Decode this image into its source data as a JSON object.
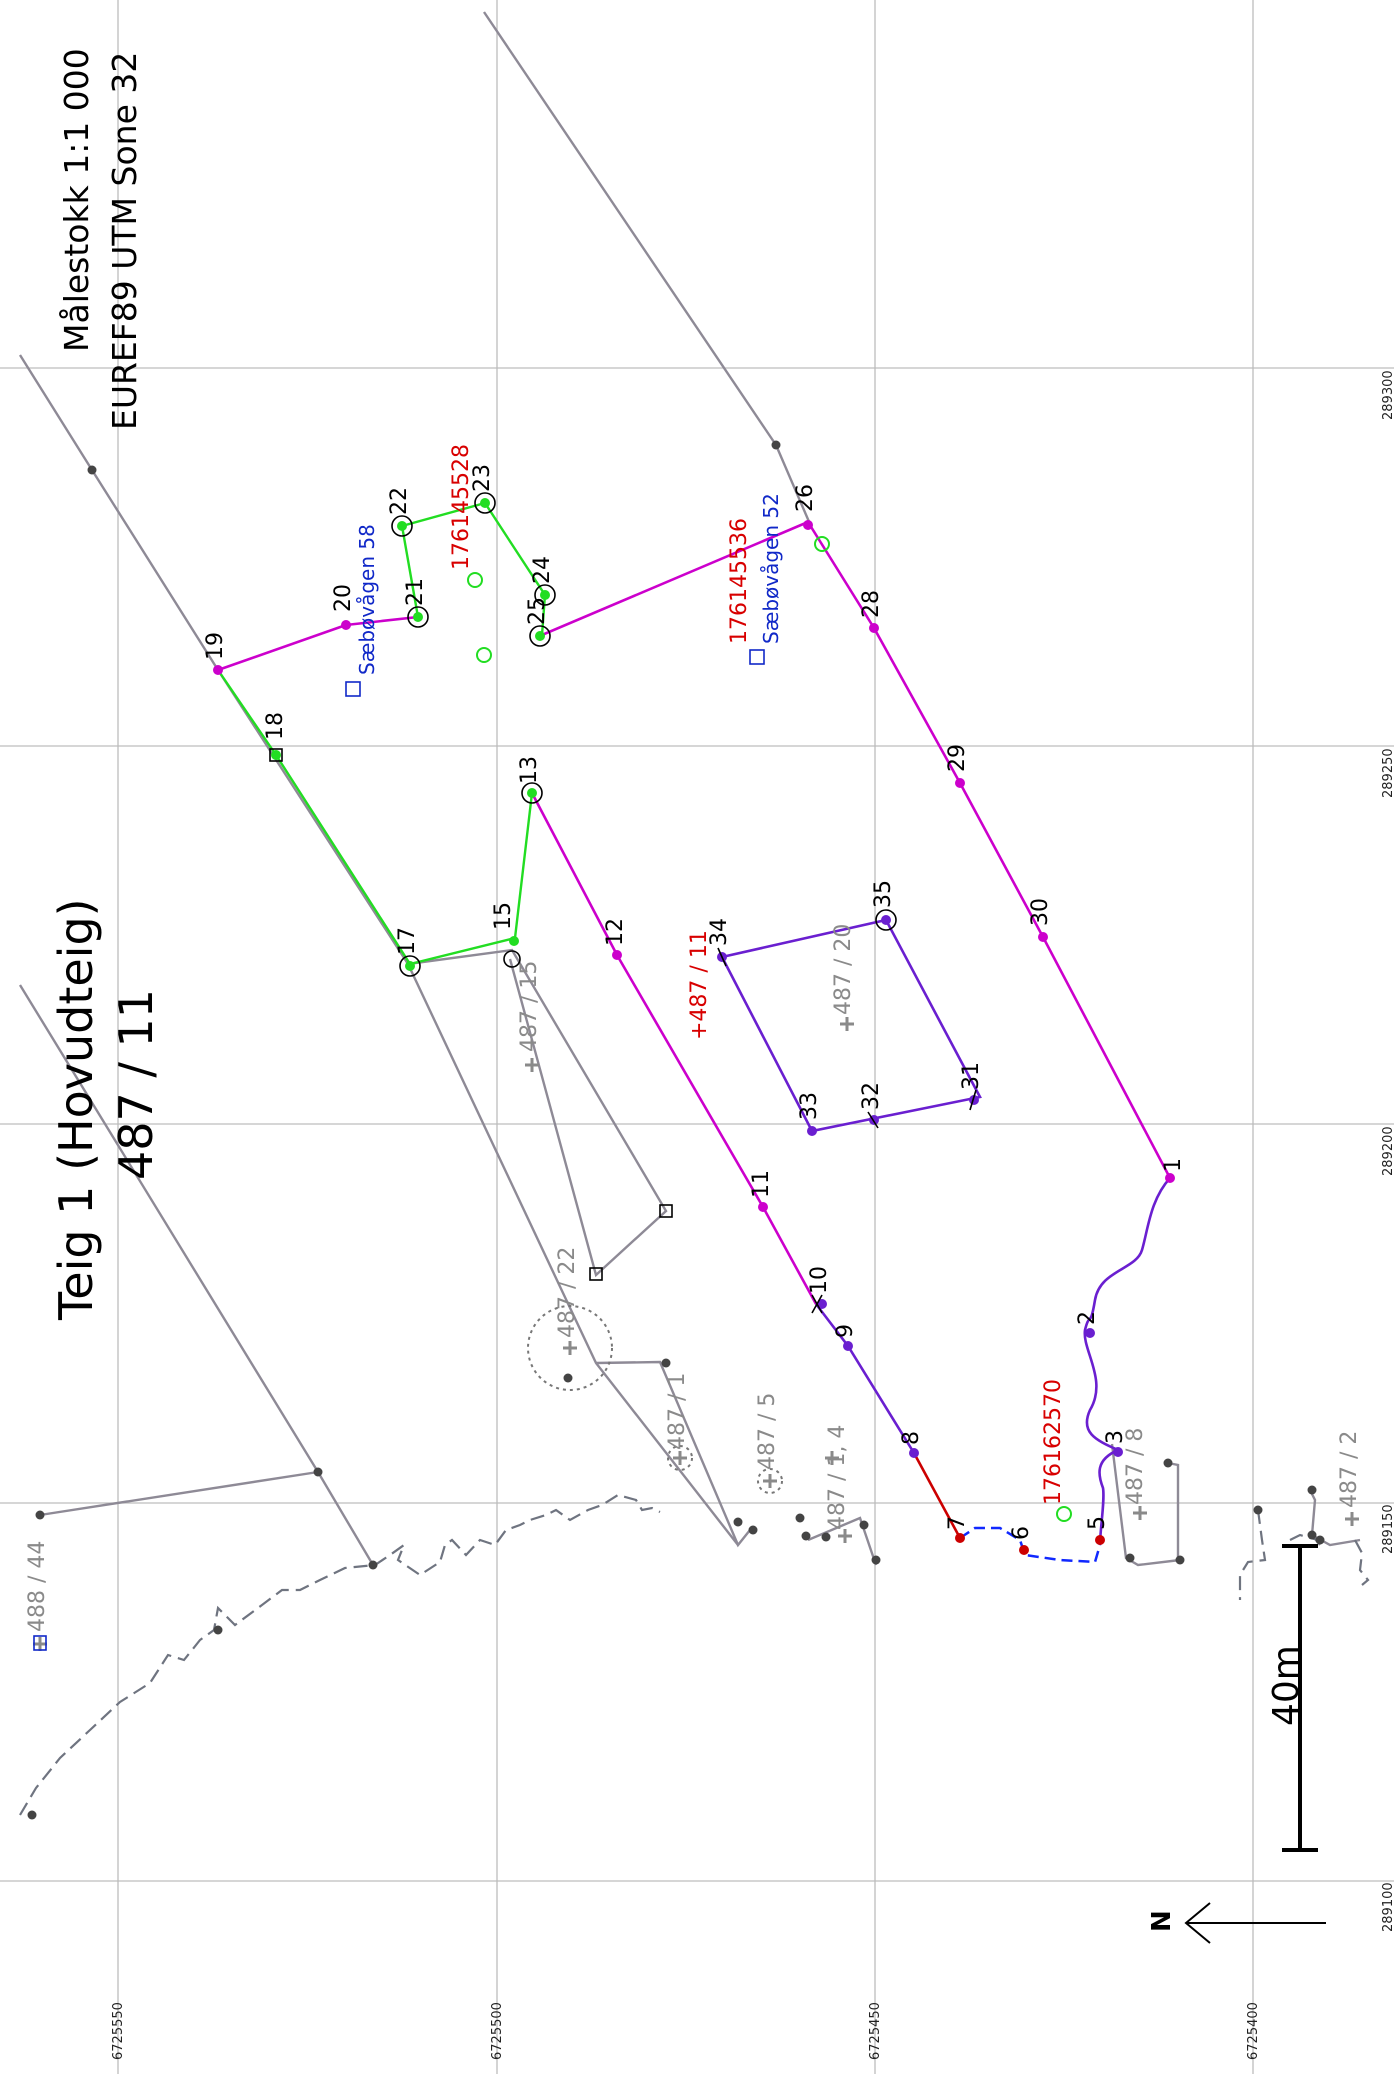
{
  "title": {
    "line1": "Teig 1 (Hovudteig)",
    "line2": "487 / 11"
  },
  "info": {
    "scale": "Målestokk 1:1 000",
    "crs": "EUREF89 UTM Sone 32"
  },
  "scale_bar": {
    "label": "40m"
  },
  "north_arrow": {
    "label": "N"
  },
  "grid_labels": {
    "northing": [
      "6725550",
      "6725500",
      "6725450",
      "6725400"
    ],
    "easting": [
      "289300",
      "289250",
      "289200",
      "289150",
      "289100"
    ]
  },
  "main_parcel": "+487 / 11",
  "neighbour_parcels": [
    "488 / 44",
    "487 / 15",
    "487 / 22",
    "487 / 1",
    "487 / 5",
    "487 / 1, 4",
    "487 / 20",
    "487 / 8",
    "487 / 2"
  ],
  "building_ids": [
    "176145528",
    "176145536",
    "176162570"
  ],
  "addresses": [
    "Sæbøvågen 58",
    "Sæbøvågen 52"
  ],
  "boundary_points": [
    "1",
    "2",
    "3",
    "5",
    "6",
    "7",
    "8",
    "9",
    "10",
    "11",
    "12",
    "13",
    "15",
    "17",
    "18",
    "19",
    "20",
    "21",
    "22",
    "23",
    "24",
    "25",
    "26",
    "28",
    "29",
    "30",
    "31",
    "32",
    "33",
    "34",
    "35"
  ],
  "colors": {
    "outer_boundary": "#cc00cc",
    "green_boundary": "#22dd22",
    "inner_boundary": "#6a1fd0",
    "neighbour_line": "#8e8a96",
    "shoreline": "#6f7480",
    "id_red": "#d80000",
    "address_blue": "#1028c8",
    "grid": "#bdbdbd"
  }
}
